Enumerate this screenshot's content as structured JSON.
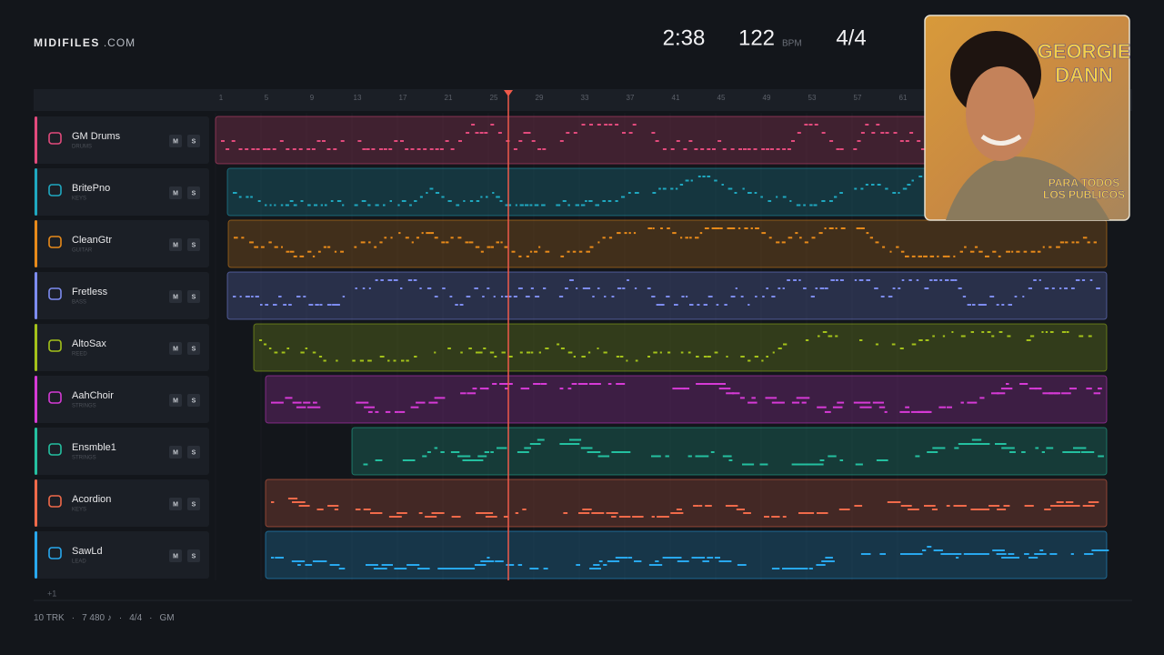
{
  "header": {
    "brand": "MIDIFILES",
    "brand_suffix": ".COM",
    "time": "2:38",
    "tempo": "122",
    "tempo_unit": "BPM",
    "meter": "4/4"
  },
  "ruler": {
    "bars": [
      "1",
      "5",
      "9",
      "13",
      "17",
      "21",
      "25",
      "29",
      "33",
      "37",
      "41",
      "45",
      "49",
      "53",
      "57",
      "61"
    ]
  },
  "tracks": [
    {
      "name": "GM Drums",
      "group": "DRUMS",
      "color": "#e24a7c",
      "mute": "M",
      "solo": "S"
    },
    {
      "name": "BritePno",
      "group": "KEYS",
      "color": "#1fa8c0",
      "mute": "M",
      "solo": "S"
    },
    {
      "name": "CleanGtr",
      "group": "GUITAR",
      "color": "#e88a1a",
      "mute": "M",
      "solo": "S"
    },
    {
      "name": "Fretless",
      "group": "BASS",
      "color": "#7d8cf0",
      "mute": "M",
      "solo": "S"
    },
    {
      "name": "AltoSax",
      "group": "REED",
      "color": "#a4c21a",
      "mute": "M",
      "solo": "S"
    },
    {
      "name": "AahChoir",
      "group": "STRINGS",
      "color": "#d63ad6",
      "mute": "M",
      "solo": "S"
    },
    {
      "name": "Ensmble1",
      "group": "STRINGS",
      "color": "#24c0a0",
      "mute": "M",
      "solo": "S"
    },
    {
      "name": "Acordion",
      "group": "KEYS",
      "color": "#f06a4a",
      "mute": "M",
      "solo": "S"
    },
    {
      "name": "SawLd",
      "group": "LEAD",
      "color": "#28a8ee",
      "mute": "M",
      "solo": "S"
    }
  ],
  "more_tracks": "+1",
  "album": {
    "artist": [
      "GEORGIE",
      "DANN"
    ],
    "title": [
      "PARA TODOS",
      "LOS PUBLICOS"
    ]
  },
  "footer": {
    "tracks": "10 TRK",
    "notes": "7 480 ♪",
    "meter": "4/4",
    "standard": "GM"
  }
}
